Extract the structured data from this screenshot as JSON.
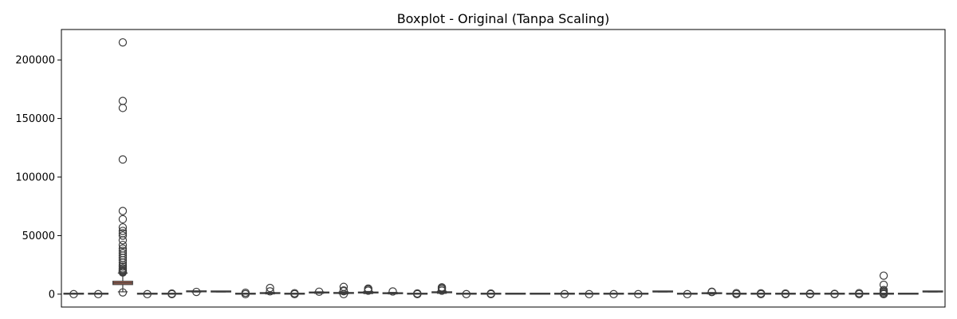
{
  "chart_data": {
    "type": "box",
    "title": "Boxplot - Original (Tanpa Scaling)",
    "xlabel": "",
    "ylabel": "",
    "ylim": [
      -11000,
      226000
    ],
    "yticks": [
      0,
      50000,
      100000,
      150000,
      200000
    ],
    "ytick_labels": [
      "0",
      "50000",
      "100000",
      "150000",
      "200000"
    ],
    "xticks_shown": false,
    "grid": false,
    "legend": null,
    "n_boxes": 36,
    "box_color": "#e1785a",
    "secondary_box_color": "#8c7fc0",
    "boxes": [
      {
        "q1": 0,
        "median": 0,
        "q3": 0,
        "whisker_low": 0,
        "whisker_high": 0,
        "outliers": [
          0
        ]
      },
      {
        "q1": 0,
        "median": 0,
        "q3": 0,
        "whisker_low": 0,
        "whisker_high": 0,
        "outliers": [
          0
        ]
      },
      {
        "q1": 8200,
        "median": 9600,
        "q3": 11000,
        "whisker_low": 2000,
        "whisker_high": 18000,
        "outliers": [
          215000,
          165000,
          159000,
          115000,
          71000,
          64000,
          57000,
          54000,
          52000,
          50000,
          46000,
          42000,
          39000,
          37000,
          35000,
          33000,
          31000,
          29000,
          27000,
          25000,
          23500,
          22000,
          21000,
          20000,
          19500,
          19000,
          18500,
          1500
        ]
      },
      {
        "q1": 0,
        "median": 0,
        "q3": 0,
        "whisker_low": 0,
        "whisker_high": 0,
        "outliers": [
          0
        ]
      },
      {
        "q1": 0,
        "median": 0,
        "q3": 0,
        "whisker_low": 0,
        "whisker_high": 0,
        "outliers": [
          0,
          500
        ]
      },
      {
        "q1": 2000,
        "median": 2200,
        "q3": 2400,
        "whisker_low": 1800,
        "whisker_high": 2600,
        "outliers": [
          1900
        ]
      },
      {
        "q1": 1900,
        "median": 2000,
        "q3": 2100,
        "whisker_low": 1900,
        "whisker_high": 2100,
        "outliers": []
      },
      {
        "q1": 0,
        "median": 0,
        "q3": 0,
        "whisker_low": 0,
        "whisker_high": 0,
        "outliers": [
          0,
          1200
        ]
      },
      {
        "q1": 500,
        "median": 700,
        "q3": 900,
        "whisker_low": 200,
        "whisker_high": 1500,
        "outliers": [
          2400,
          5300
        ]
      },
      {
        "q1": 0,
        "median": 0,
        "q3": 0,
        "whisker_low": 0,
        "whisker_high": 0,
        "outliers": [
          0,
          800
        ]
      },
      {
        "q1": 1000,
        "median": 1300,
        "q3": 1500,
        "whisker_low": 700,
        "whisker_high": 2000,
        "outliers": [
          2100
        ]
      },
      {
        "q1": 600,
        "median": 900,
        "q3": 1200,
        "whisker_low": 200,
        "whisker_high": 2000,
        "outliers": [
          0,
          2500,
          3200,
          6200
        ]
      },
      {
        "q1": 1000,
        "median": 1300,
        "q3": 1600,
        "whisker_low": 500,
        "whisker_high": 2300,
        "outliers": [
          3000,
          4000,
          4800
        ]
      },
      {
        "q1": 400,
        "median": 700,
        "q3": 1000,
        "whisker_low": 200,
        "whisker_high": 1500,
        "outliers": [
          2300
        ]
      },
      {
        "q1": 0,
        "median": 0,
        "q3": 0,
        "whisker_low": 0,
        "whisker_high": 0,
        "outliers": [
          0,
          600
        ]
      },
      {
        "q1": 1200,
        "median": 1500,
        "q3": 1800,
        "whisker_low": 700,
        "whisker_high": 2500,
        "outliers": [
          3000,
          4200,
          5200,
          5800
        ]
      },
      {
        "q1": 0,
        "median": 0,
        "q3": 0,
        "whisker_low": 0,
        "whisker_high": 0,
        "outliers": [
          0
        ]
      },
      {
        "q1": 0,
        "median": 0,
        "q3": 0,
        "whisker_low": 0,
        "whisker_high": 0,
        "outliers": [
          0,
          500
        ]
      },
      {
        "q1": 0,
        "median": 0,
        "q3": 0,
        "whisker_low": 0,
        "whisker_high": 0,
        "outliers": []
      },
      {
        "q1": 0,
        "median": 0,
        "q3": 0,
        "whisker_low": 0,
        "whisker_high": 0,
        "outliers": []
      },
      {
        "q1": 0,
        "median": 0,
        "q3": 0,
        "whisker_low": 0,
        "whisker_high": 0,
        "outliers": [
          0
        ]
      },
      {
        "q1": 0,
        "median": 0,
        "q3": 0,
        "whisker_low": 0,
        "whisker_high": 0,
        "outliers": [
          0
        ]
      },
      {
        "q1": 0,
        "median": 0,
        "q3": 0,
        "whisker_low": 0,
        "whisker_high": 0,
        "outliers": [
          0
        ]
      },
      {
        "q1": 0,
        "median": 0,
        "q3": 0,
        "whisker_low": 0,
        "whisker_high": 0,
        "outliers": [
          0
        ]
      },
      {
        "q1": 1900,
        "median": 2000,
        "q3": 2100,
        "whisker_low": 1900,
        "whisker_high": 2100,
        "outliers": []
      },
      {
        "q1": 0,
        "median": 0,
        "q3": 0,
        "whisker_low": 0,
        "whisker_high": 0,
        "outliers": [
          0
        ]
      },
      {
        "q1": 400,
        "median": 700,
        "q3": 1000,
        "whisker_low": 200,
        "whisker_high": 1400,
        "outliers": [
          1800,
          2100
        ]
      },
      {
        "q1": 0,
        "median": 0,
        "q3": 0,
        "whisker_low": 0,
        "whisker_high": 0,
        "outliers": [
          0,
          900
        ]
      },
      {
        "q1": 0,
        "median": 0,
        "q3": 0,
        "whisker_low": 0,
        "whisker_high": 0,
        "outliers": [
          0,
          700
        ]
      },
      {
        "q1": 0,
        "median": 0,
        "q3": 0,
        "whisker_low": 0,
        "whisker_high": 0,
        "outliers": [
          0,
          500
        ]
      },
      {
        "q1": 0,
        "median": 0,
        "q3": 0,
        "whisker_low": 0,
        "whisker_high": 0,
        "outliers": [
          0,
          400
        ]
      },
      {
        "q1": 0,
        "median": 0,
        "q3": 0,
        "whisker_low": 0,
        "whisker_high": 0,
        "outliers": [
          0,
          300
        ]
      },
      {
        "q1": 0,
        "median": 0,
        "q3": 0,
        "whisker_low": 0,
        "whisker_high": 0,
        "outliers": [
          0,
          900
        ]
      },
      {
        "q1": 0,
        "median": 0,
        "q3": 0,
        "whisker_low": 0,
        "whisker_high": 0,
        "outliers": [
          0,
          500,
          1500,
          2500,
          3500,
          8000,
          15800
        ]
      },
      {
        "q1": 0,
        "median": 0,
        "q3": 0,
        "whisker_low": 0,
        "whisker_high": 0,
        "outliers": []
      },
      {
        "q1": 1900,
        "median": 2000,
        "q3": 2100,
        "whisker_low": 1900,
        "whisker_high": 2100,
        "outliers": []
      }
    ]
  }
}
